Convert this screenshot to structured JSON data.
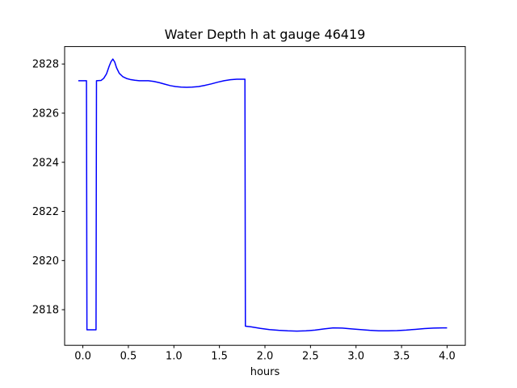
{
  "figure": {
    "background_color": "#ffffff",
    "spine_color": "#000000",
    "line_color": "#0000ff"
  },
  "chart_data": {
    "type": "line",
    "title": "Water Depth h at gauge 46419",
    "xlabel": "hours",
    "ylabel": "",
    "grid": false,
    "legend": null,
    "xlim": [
      -0.2,
      4.2
    ],
    "ylim": [
      2816.55,
      2828.71
    ],
    "x_tick_labels": [
      "0.0",
      "0.5",
      "1.0",
      "1.5",
      "2.0",
      "2.5",
      "3.0",
      "3.5",
      "4.0"
    ],
    "x_tick_values": [
      0.0,
      0.5,
      1.0,
      1.5,
      2.0,
      2.5,
      3.0,
      3.5,
      4.0
    ],
    "y_tick_labels": [
      "2818",
      "2820",
      "2822",
      "2824",
      "2826",
      "2828"
    ],
    "y_tick_values": [
      2818,
      2820,
      2822,
      2824,
      2826,
      2828
    ],
    "series": [
      {
        "name": "water depth h",
        "color": "#0000ff",
        "points": [
          [
            -0.05,
            2827.32
          ],
          [
            0.04,
            2827.32
          ],
          [
            0.045,
            2817.18
          ],
          [
            0.145,
            2817.18
          ],
          [
            0.15,
            2827.32
          ],
          [
            0.2,
            2827.33
          ],
          [
            0.23,
            2827.42
          ],
          [
            0.26,
            2827.6
          ],
          [
            0.29,
            2827.92
          ],
          [
            0.31,
            2828.1
          ],
          [
            0.33,
            2828.2
          ],
          [
            0.35,
            2828.08
          ],
          [
            0.37,
            2827.85
          ],
          [
            0.4,
            2827.62
          ],
          [
            0.44,
            2827.48
          ],
          [
            0.48,
            2827.41
          ],
          [
            0.52,
            2827.37
          ],
          [
            0.57,
            2827.34
          ],
          [
            0.62,
            2827.32
          ],
          [
            0.67,
            2827.32
          ],
          [
            0.72,
            2827.32
          ],
          [
            0.78,
            2827.29
          ],
          [
            0.84,
            2827.24
          ],
          [
            0.9,
            2827.18
          ],
          [
            0.96,
            2827.12
          ],
          [
            1.02,
            2827.08
          ],
          [
            1.08,
            2827.06
          ],
          [
            1.14,
            2827.05
          ],
          [
            1.2,
            2827.06
          ],
          [
            1.27,
            2827.08
          ],
          [
            1.34,
            2827.13
          ],
          [
            1.41,
            2827.19
          ],
          [
            1.48,
            2827.26
          ],
          [
            1.55,
            2827.32
          ],
          [
            1.62,
            2827.36
          ],
          [
            1.69,
            2827.38
          ],
          [
            1.78,
            2827.38
          ],
          [
            1.785,
            2817.33
          ],
          [
            1.85,
            2817.3
          ],
          [
            1.95,
            2817.24
          ],
          [
            2.05,
            2817.19
          ],
          [
            2.15,
            2817.16
          ],
          [
            2.25,
            2817.14
          ],
          [
            2.35,
            2817.13
          ],
          [
            2.45,
            2817.14
          ],
          [
            2.55,
            2817.17
          ],
          [
            2.65,
            2817.22
          ],
          [
            2.75,
            2817.26
          ],
          [
            2.85,
            2817.25
          ],
          [
            2.95,
            2817.22
          ],
          [
            3.05,
            2817.19
          ],
          [
            3.15,
            2817.16
          ],
          [
            3.25,
            2817.14
          ],
          [
            3.35,
            2817.14
          ],
          [
            3.45,
            2817.15
          ],
          [
            3.55,
            2817.17
          ],
          [
            3.65,
            2817.2
          ],
          [
            3.75,
            2817.23
          ],
          [
            3.85,
            2817.25
          ],
          [
            3.95,
            2817.26
          ],
          [
            4.0,
            2817.26
          ]
        ]
      }
    ]
  }
}
